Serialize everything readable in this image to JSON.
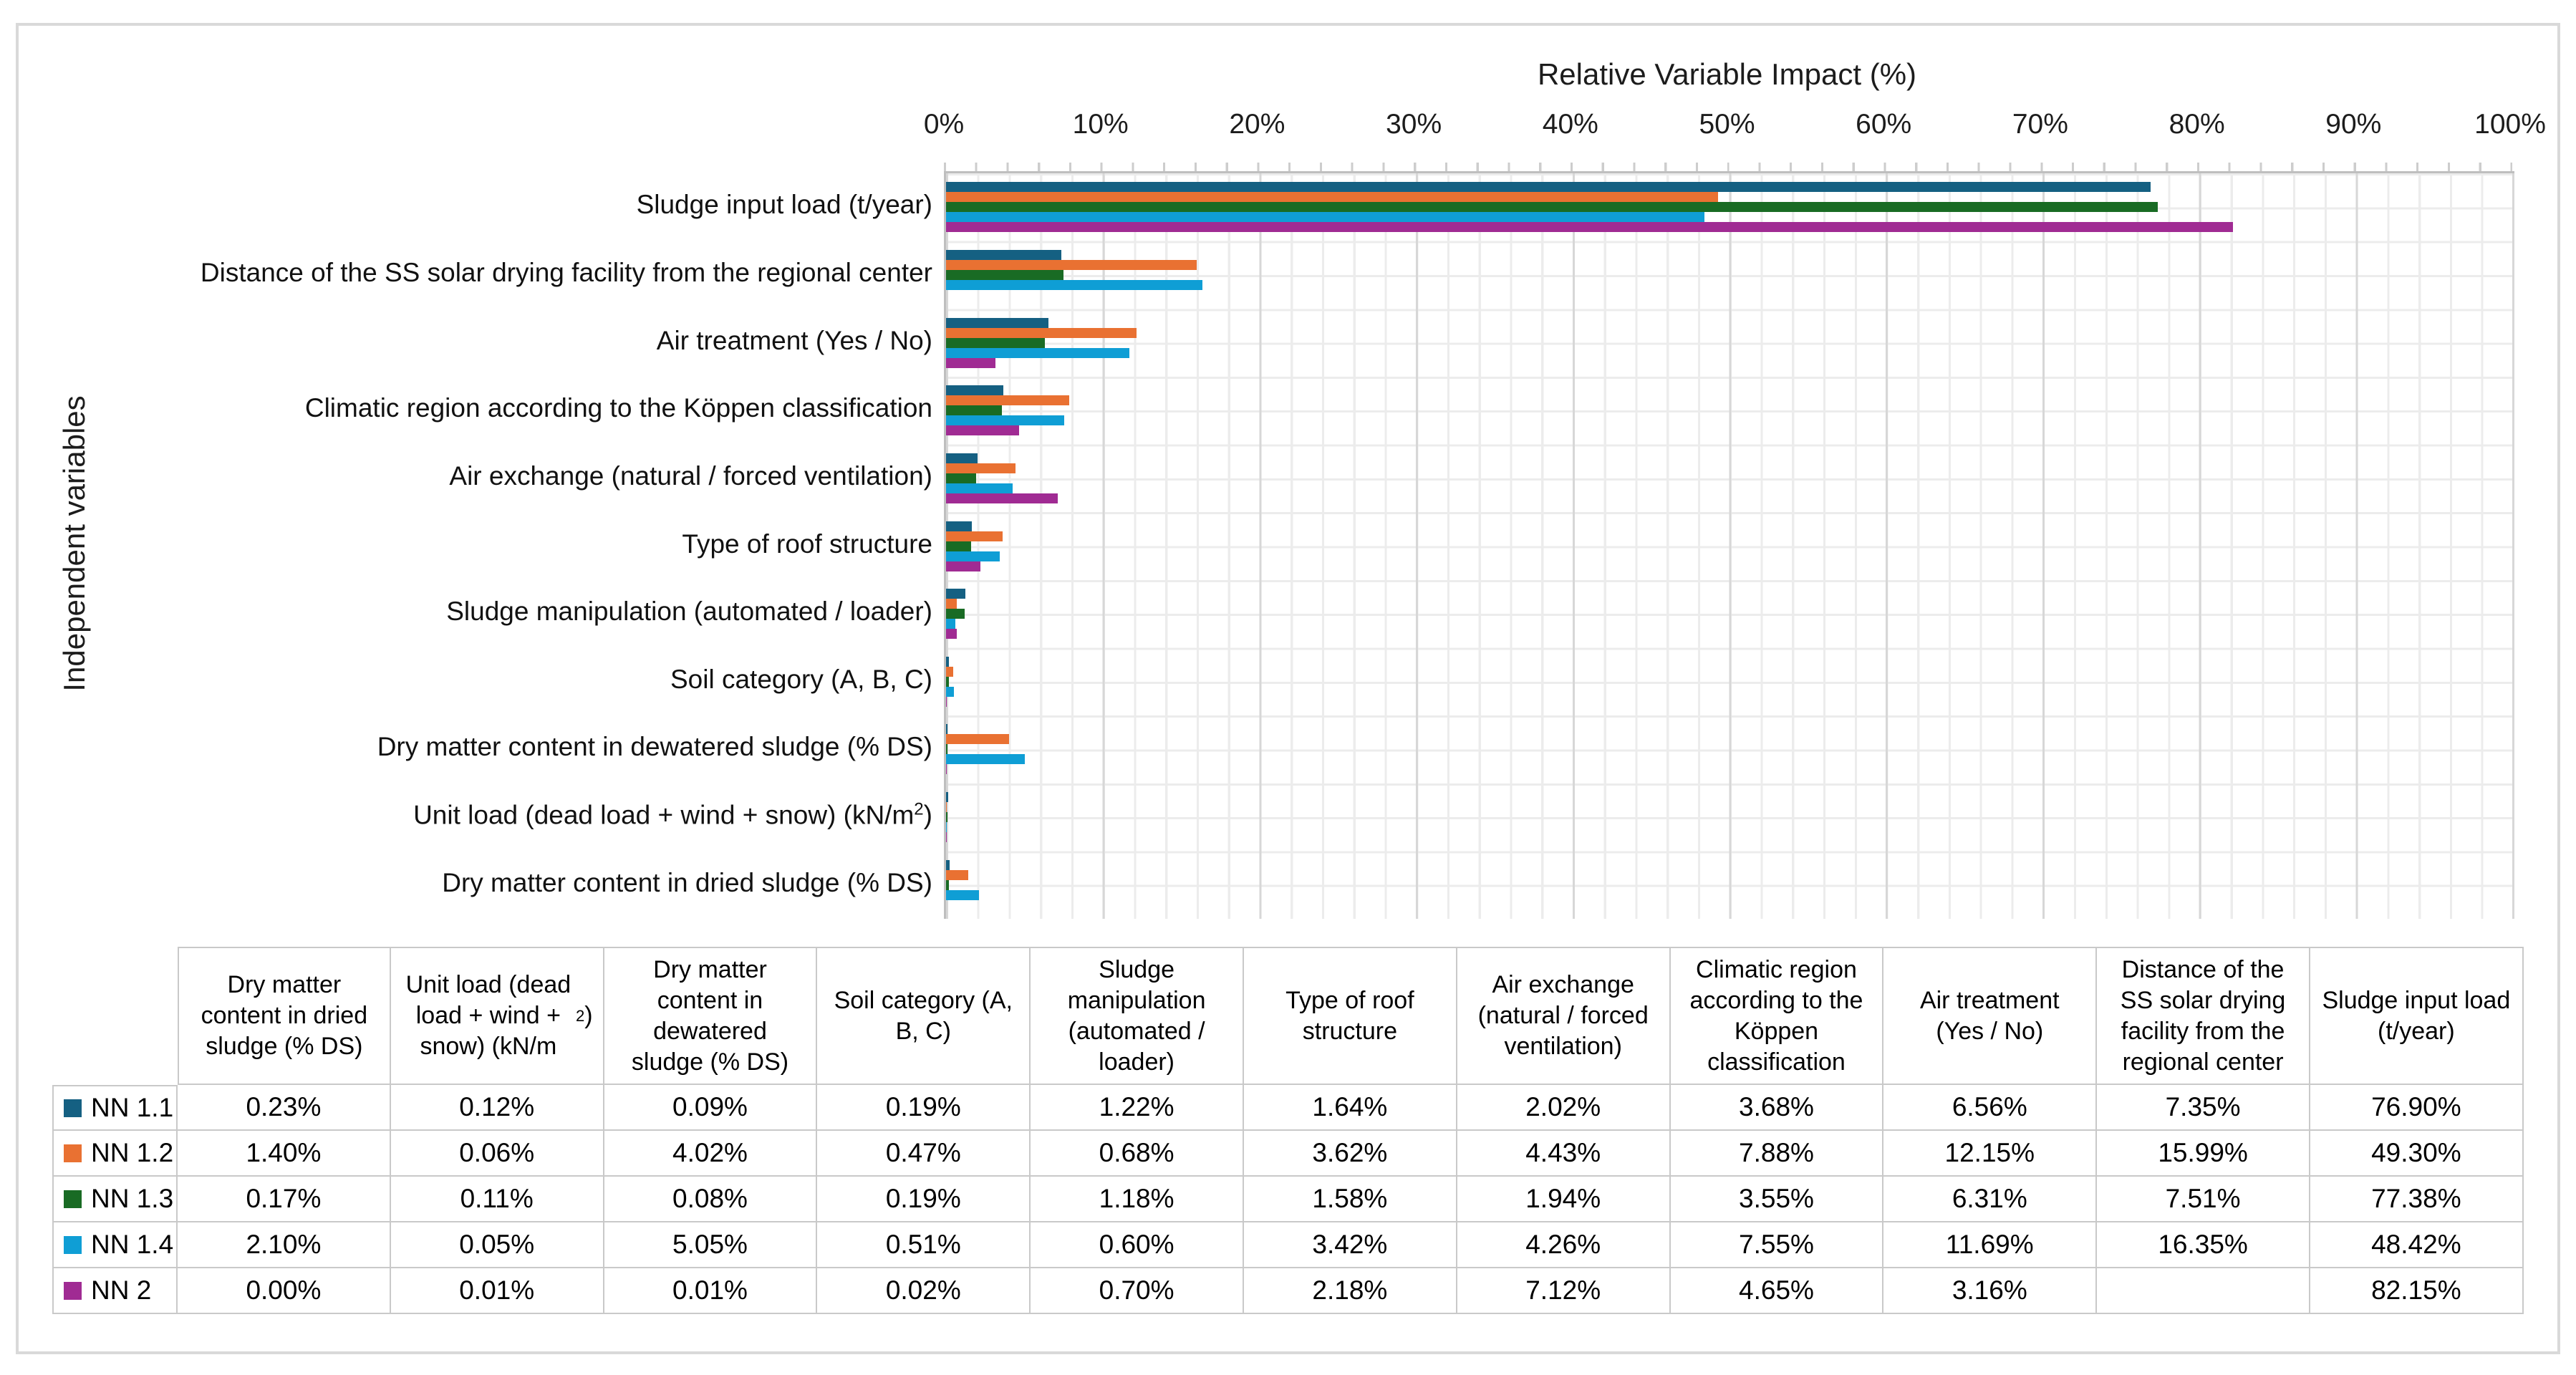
{
  "figure": {
    "border_color": "#D9D9D9",
    "background": "#FFFFFF"
  },
  "chart_data": {
    "type": "bar",
    "orientation": "horizontal",
    "axis_title_x": "Relative Variable Impact (%)",
    "axis_title_y": "Independent variables",
    "x_ticks": [
      "0%",
      "10%",
      "20%",
      "30%",
      "40%",
      "50%",
      "60%",
      "70%",
      "80%",
      "90%",
      "100%"
    ],
    "xlim": [
      0,
      100
    ],
    "grid": {
      "minor_step_pct": 2,
      "major_step_pct": 10,
      "minor_color": "#ECECEC",
      "major_color": "#D7D7D7",
      "horizontal_color": "#ECECEC"
    },
    "legend_position": "table-row-keys",
    "categories": [
      "Sludge input load (t/year)",
      "Distance of the SS solar drying facility from the regional center",
      "Air treatment (Yes / No)",
      "Climatic region according to the Köppen classification",
      "Air exchange (natural / forced ventilation)",
      "Type of roof structure",
      "Sludge manipulation (automated / loader)",
      "Soil category (A, B, C)",
      "Dry matter content in dewatered sludge (% DS)",
      "Unit load (dead load + wind + snow) (kN/m²)",
      "Dry matter content in dried sludge (% DS)"
    ],
    "series": [
      {
        "name": "NN 1.1",
        "color": "#156082",
        "values": [
          76.9,
          7.35,
          6.56,
          3.68,
          2.02,
          1.64,
          1.22,
          0.19,
          0.09,
          0.12,
          0.23
        ]
      },
      {
        "name": "NN 1.2",
        "color": "#E97132",
        "values": [
          49.3,
          15.99,
          12.15,
          7.88,
          4.43,
          3.62,
          0.68,
          0.47,
          4.02,
          0.06,
          1.4
        ]
      },
      {
        "name": "NN 1.3",
        "color": "#196B24",
        "values": [
          77.38,
          7.51,
          6.31,
          3.55,
          1.94,
          1.58,
          1.18,
          0.19,
          0.08,
          0.11,
          0.17
        ]
      },
      {
        "name": "NN 1.4",
        "color": "#0F9ED5",
        "values": [
          48.42,
          16.35,
          11.69,
          7.55,
          4.26,
          3.42,
          0.6,
          0.51,
          5.05,
          0.05,
          2.1
        ]
      },
      {
        "name": "NN 2",
        "color": "#A02B93",
        "values": [
          82.15,
          null,
          3.16,
          4.65,
          7.12,
          2.18,
          0.7,
          0.02,
          0.01,
          0.01,
          0.0
        ]
      }
    ]
  },
  "table": {
    "columns": [
      "Dry matter content in dried sludge (% DS)",
      "Unit load (dead load + wind + snow) (kN/m²)",
      "Dry matter content in dewatered sludge (% DS)",
      "Soil category (A, B, C)",
      "Sludge manipulation (automated / loader)",
      "Type of roof structure",
      "Air exchange (natural / forced ventilation)",
      "Climatic region according to the Köppen classification",
      "Air treatment (Yes / No)",
      "Distance of the SS solar drying facility from the regional center",
      "Sludge input load (t/year)"
    ],
    "rows": [
      {
        "label": "NN 1.1",
        "color": "#156082",
        "values": [
          "0.23%",
          "0.12%",
          "0.09%",
          "0.19%",
          "1.22%",
          "1.64%",
          "2.02%",
          "3.68%",
          "6.56%",
          "7.35%",
          "76.90%"
        ]
      },
      {
        "label": "NN 1.2",
        "color": "#E97132",
        "values": [
          "1.40%",
          "0.06%",
          "4.02%",
          "0.47%",
          "0.68%",
          "3.62%",
          "4.43%",
          "7.88%",
          "12.15%",
          "15.99%",
          "49.30%"
        ]
      },
      {
        "label": "NN 1.3",
        "color": "#196B24",
        "values": [
          "0.17%",
          "0.11%",
          "0.08%",
          "0.19%",
          "1.18%",
          "1.58%",
          "1.94%",
          "3.55%",
          "6.31%",
          "7.51%",
          "77.38%"
        ]
      },
      {
        "label": "NN 1.4",
        "color": "#0F9ED5",
        "values": [
          "2.10%",
          "0.05%",
          "5.05%",
          "0.51%",
          "0.60%",
          "3.42%",
          "4.26%",
          "7.55%",
          "11.69%",
          "16.35%",
          "48.42%"
        ]
      },
      {
        "label": "NN 2",
        "color": "#A02B93",
        "values": [
          "0.00%",
          "0.01%",
          "0.01%",
          "0.02%",
          "0.70%",
          "2.18%",
          "7.12%",
          "4.65%",
          "3.16%",
          "",
          "82.15%"
        ]
      }
    ]
  }
}
